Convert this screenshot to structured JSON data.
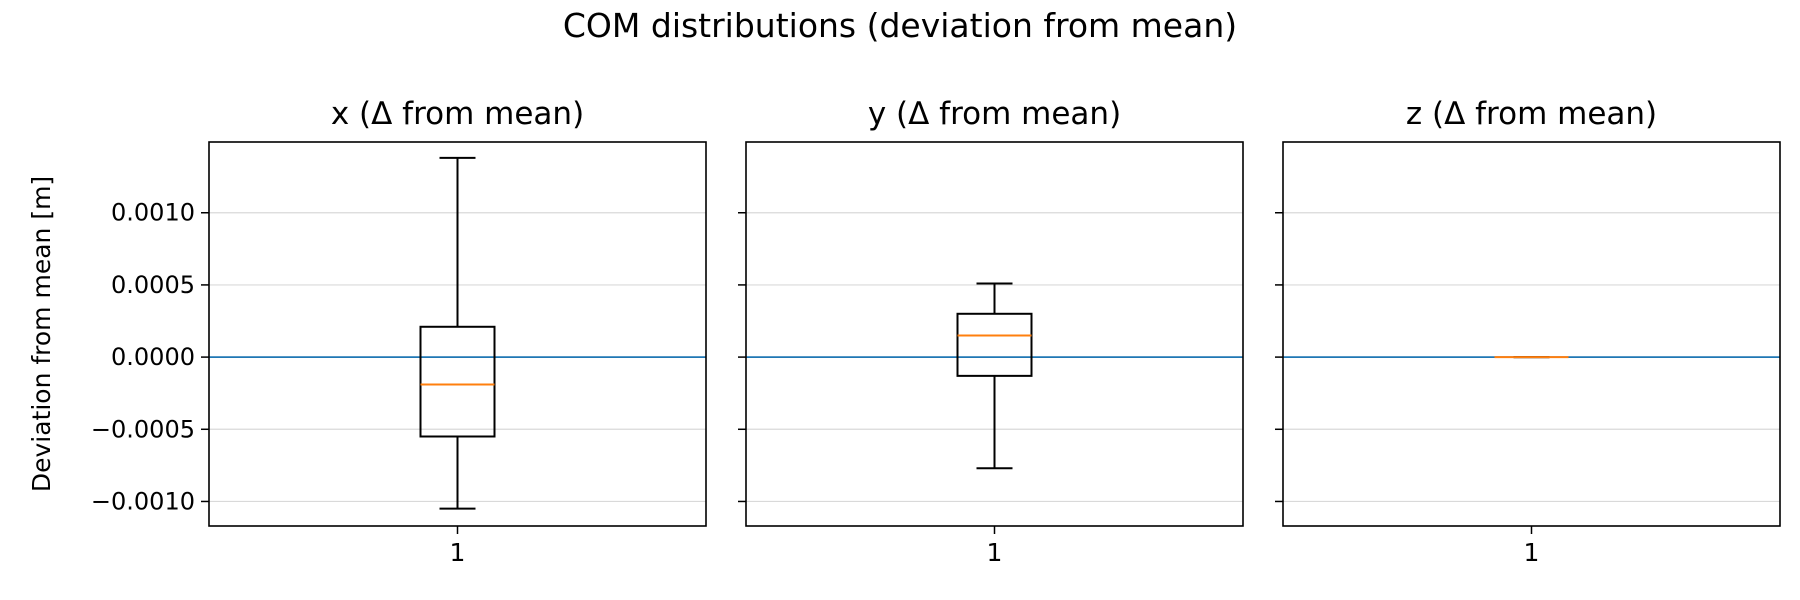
{
  "figure_title": "COM distributions (deviation from mean)",
  "colors": {
    "box": "#000000",
    "median": "#ff7f0e",
    "reference_line": "#1f77b4",
    "grid": "#d9d9d9"
  },
  "chart_data": [
    {
      "type": "box",
      "title": "x (Δ from mean)",
      "ylabel": "Deviation from mean [m]",
      "ylim": [
        -0.00117,
        0.00149
      ],
      "yticks": [
        -0.001,
        -0.0005,
        0.0,
        0.0005,
        0.001
      ],
      "ytick_labels": [
        "−0.0010",
        "−0.0005",
        "0.0000",
        "0.0005",
        "0.0010"
      ],
      "categories": [
        "1"
      ],
      "grid": "horizontal",
      "reference_line_y": 0.0,
      "box": {
        "whisker_low": -0.00105,
        "q1": -0.00055,
        "median": -0.00019,
        "q3": 0.00021,
        "whisker_high": 0.00138
      }
    },
    {
      "type": "box",
      "title": "y (Δ from mean)",
      "ylabel": "",
      "ylim": [
        -0.00117,
        0.00149
      ],
      "yticks": [
        -0.001,
        -0.0005,
        0.0,
        0.0005,
        0.001
      ],
      "ytick_labels": [],
      "categories": [
        "1"
      ],
      "grid": "horizontal",
      "reference_line_y": 0.0,
      "box": {
        "whisker_low": -0.00077,
        "q1": -0.00013,
        "median": 0.00015,
        "q3": 0.0003,
        "whisker_high": 0.00051
      }
    },
    {
      "type": "box",
      "title": "z (Δ from mean)",
      "ylabel": "",
      "ylim": [
        -0.00117,
        0.00149
      ],
      "yticks": [
        -0.001,
        -0.0005,
        0.0,
        0.0005,
        0.001
      ],
      "ytick_labels": [],
      "categories": [
        "1"
      ],
      "grid": "horizontal",
      "reference_line_y": 0.0,
      "box": {
        "whisker_low": 0.0,
        "q1": 0.0,
        "median": 0.0,
        "q3": 0.0,
        "whisker_high": 0.0
      }
    }
  ]
}
